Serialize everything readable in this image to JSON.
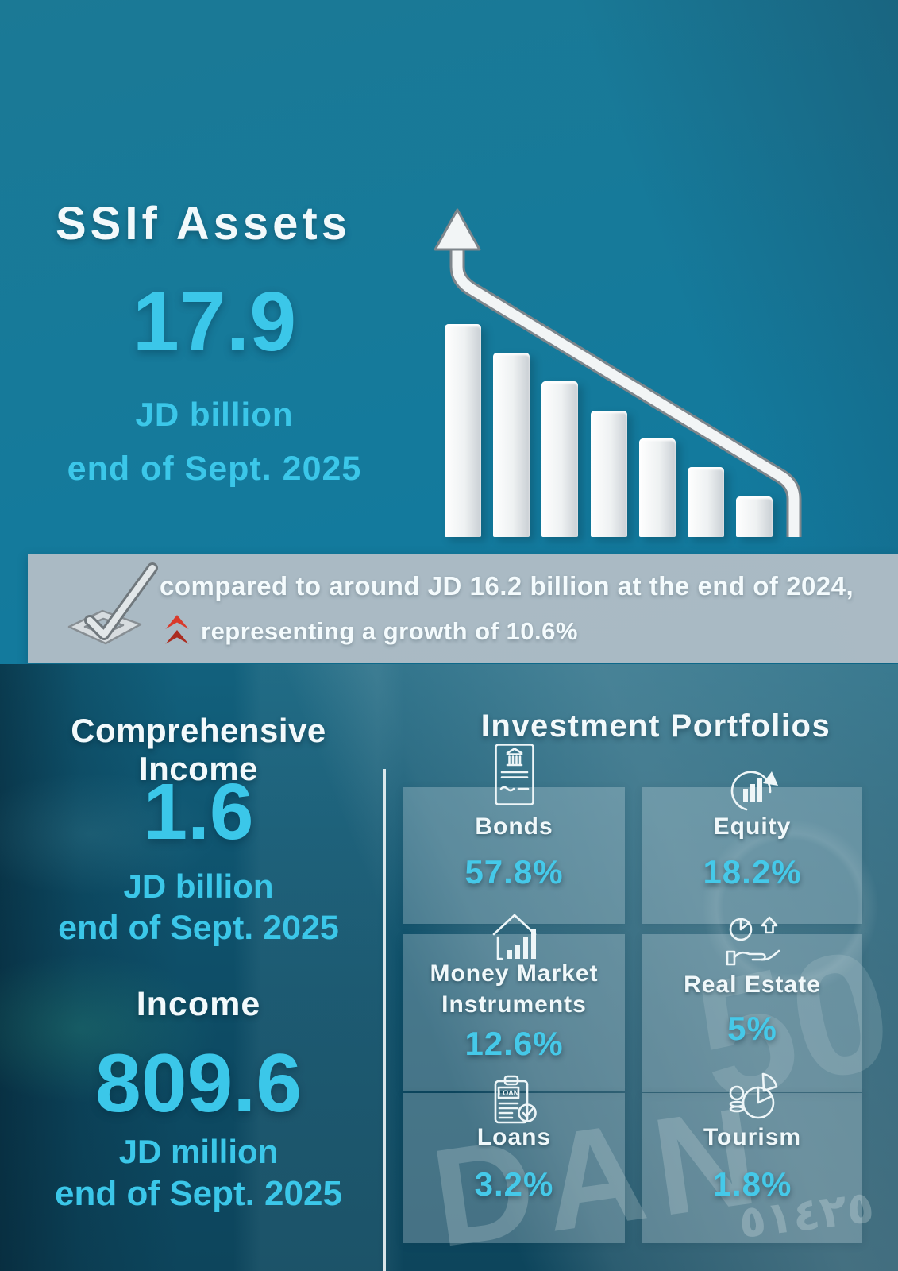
{
  "infographic": {
    "assets": {
      "heading": "SSIf Assets",
      "value": "17.9",
      "unit": "JD billion",
      "period": "end of Sept. 2025"
    },
    "comparison": {
      "line1": "compared to around JD 16.2 billion at the end of 2024,",
      "line2": "representing a growth of 10.6%",
      "check_icon": "checkmark-icon",
      "growth_icon": "double-chevron-up-icon"
    },
    "comprehensive_income": {
      "heading": "Comprehensive Income",
      "value": "1.6",
      "unit": "JD billion",
      "period": "end of Sept. 2025"
    },
    "income": {
      "heading": "Income",
      "value": "809.6",
      "unit": "JD million",
      "period": "end of Sept. 2025"
    },
    "portfolios": {
      "heading": "Investment Portfolios",
      "items": [
        {
          "label": "Bonds",
          "value": "57.8%",
          "icon": "bond-certificate-icon"
        },
        {
          "label": "Equity",
          "value": "18.2%",
          "icon": "equity-growth-icon"
        },
        {
          "label": "Money Market Instruments",
          "value": "12.6%",
          "icon": "money-market-house-icon"
        },
        {
          "label": "Real Estate",
          "value": "5%",
          "icon": "real-estate-hand-icon"
        },
        {
          "label": "Loans",
          "value": "3.2%",
          "icon": "loan-clipboard-icon"
        },
        {
          "label": "Tourism",
          "value": "1.8%",
          "icon": "tourism-pie-coins-icon"
        }
      ]
    }
  },
  "background": {
    "watermarks": [
      {
        "text": "DAN"
      },
      {
        "text": "50"
      },
      {
        "text": "٥١٤٢٥"
      }
    ]
  },
  "colors": {
    "accent_cyan": "#3bc7e9",
    "background_teal": "#137a9d",
    "lower_teal": "#0d4b64",
    "banner_gray": "#b2bec6",
    "growth_red": "#cf3a2c",
    "bar_white": "#f2f5f6",
    "text_white": "#f2f9fb"
  },
  "chart_data": [
    {
      "id": "assets_growth",
      "type": "bar",
      "title": "SSIF Assets (JD billion)",
      "categories": [
        "end of 2024",
        "end of Sept. 2025"
      ],
      "values": [
        16.2,
        17.9
      ],
      "annotation": "representing a growth of 10.6%",
      "ylabel": "JD billion"
    },
    {
      "id": "investment_portfolios",
      "type": "pie",
      "title": "Investment Portfolios",
      "categories": [
        "Bonds",
        "Equity",
        "Money Market Instruments",
        "Real Estate",
        "Loans",
        "Tourism"
      ],
      "values": [
        57.8,
        18.2,
        12.6,
        5,
        3.2,
        1.8
      ],
      "unit": "%"
    },
    {
      "id": "assets_trend_illustration",
      "type": "bar",
      "title": "Decorative descending bars with upward arrow (no axis labels)",
      "categories": [
        "b1",
        "b2",
        "b3",
        "b4",
        "b5",
        "b6",
        "b7"
      ],
      "values": [
        268,
        232,
        196,
        159,
        124,
        88,
        51
      ],
      "unit": "px (illustrative only)"
    }
  ]
}
